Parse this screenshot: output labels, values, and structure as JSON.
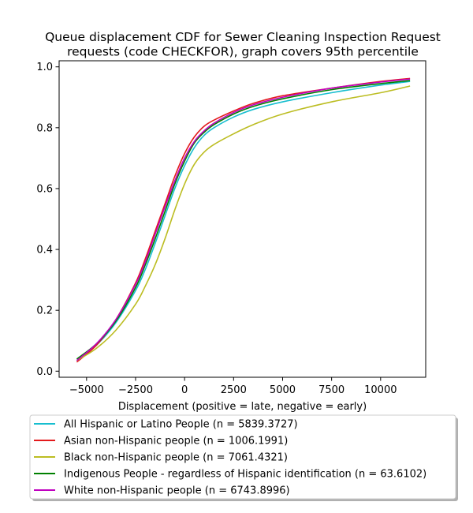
{
  "chart_data": {
    "type": "line",
    "title": "Queue displacement CDF for Sewer Cleaning Inspection Request\nrequests (code CHECKFOR), graph covers 95th percentile",
    "xlabel": "Displacement (positive = late, negative = early)",
    "ylabel": "",
    "xlim": [
      -6400,
      12300
    ],
    "ylim": [
      -0.02,
      1.02
    ],
    "xticks": [
      -5000,
      -2500,
      0,
      2500,
      5000,
      7500,
      10000
    ],
    "xtick_labels": [
      "−5000",
      "−2500",
      "0",
      "2500",
      "5000",
      "7500",
      "10000"
    ],
    "yticks": [
      0.0,
      0.2,
      0.4,
      0.6,
      0.8,
      1.0
    ],
    "ytick_labels": [
      "0.0",
      "0.2",
      "0.4",
      "0.6",
      "0.8",
      "1.0"
    ],
    "grid": false,
    "legend_position": "below",
    "series": [
      {
        "name": "All Hispanic or Latino People (n = 5839.3727)",
        "color": "#17becf",
        "x": [
          -5500,
          -4500,
          -3500,
          -2500,
          -2000,
          -1500,
          -1000,
          -500,
          0,
          500,
          1000,
          1500,
          2500,
          3500,
          5000,
          7500,
          10000,
          11500
        ],
        "y": [
          0.035,
          0.085,
          0.16,
          0.265,
          0.335,
          0.42,
          0.51,
          0.6,
          0.675,
          0.735,
          0.775,
          0.8,
          0.835,
          0.86,
          0.885,
          0.915,
          0.94,
          0.952
        ]
      },
      {
        "name": "Asian non-Hispanic people (n = 1006.1991)",
        "color": "#e31a1c",
        "x": [
          -5500,
          -4500,
          -3500,
          -2500,
          -2000,
          -1500,
          -1000,
          -500,
          0,
          500,
          1000,
          1500,
          2500,
          3500,
          5000,
          7500,
          10000,
          11500
        ],
        "y": [
          0.03,
          0.085,
          0.17,
          0.29,
          0.37,
          0.46,
          0.55,
          0.64,
          0.715,
          0.77,
          0.805,
          0.825,
          0.855,
          0.88,
          0.905,
          0.93,
          0.952,
          0.962
        ]
      },
      {
        "name": "Black non-Hispanic people (n = 7061.4321)",
        "color": "#bcbd22",
        "x": [
          -5500,
          -4500,
          -3500,
          -2500,
          -2000,
          -1500,
          -1000,
          -500,
          0,
          500,
          1000,
          1500,
          2500,
          3500,
          5000,
          7500,
          10000,
          11500
        ],
        "y": [
          0.035,
          0.075,
          0.135,
          0.22,
          0.28,
          0.35,
          0.435,
          0.53,
          0.615,
          0.68,
          0.72,
          0.745,
          0.78,
          0.81,
          0.845,
          0.885,
          0.915,
          0.937
        ]
      },
      {
        "name": "Indigenous People - regardless of Hispanic identification (n = 63.6102)",
        "color": "#008000",
        "x": [
          -5500,
          -4500,
          -3500,
          -2500,
          -2000,
          -1500,
          -1000,
          -500,
          0,
          500,
          1000,
          1500,
          2500,
          3500,
          5000,
          7500,
          10000,
          11500
        ],
        "y": [
          0.04,
          0.09,
          0.165,
          0.275,
          0.35,
          0.435,
          0.525,
          0.615,
          0.69,
          0.75,
          0.785,
          0.81,
          0.845,
          0.87,
          0.895,
          0.925,
          0.945,
          0.955
        ]
      },
      {
        "name": "White non-Hispanic people (n = 6743.8996)",
        "color": "#c000c0",
        "x": [
          -5500,
          -4500,
          -3500,
          -2500,
          -2000,
          -1500,
          -1000,
          -500,
          0,
          500,
          1000,
          1500,
          2500,
          3500,
          5000,
          7500,
          10000,
          11500
        ],
        "y": [
          0.035,
          0.09,
          0.17,
          0.285,
          0.36,
          0.45,
          0.54,
          0.625,
          0.7,
          0.755,
          0.79,
          0.815,
          0.85,
          0.875,
          0.9,
          0.93,
          0.95,
          0.96
        ]
      }
    ]
  }
}
